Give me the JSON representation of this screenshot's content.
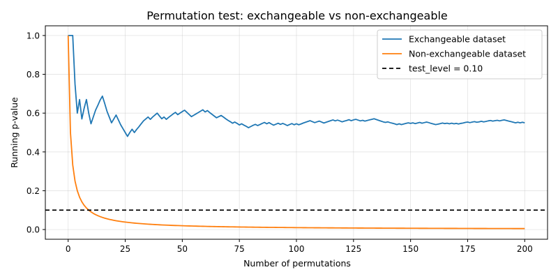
{
  "chart_data": {
    "type": "line",
    "title": "Permutation test: exchangeable vs non-exchangeable",
    "xlabel": "Number of permutations",
    "ylabel": "Running p-value",
    "xlim": [
      -10,
      210
    ],
    "ylim": [
      -0.05,
      1.05
    ],
    "xticks": [
      0,
      25,
      50,
      75,
      100,
      125,
      150,
      175,
      200
    ],
    "yticks": [
      0.0,
      0.2,
      0.4,
      0.6,
      0.8,
      1.0
    ],
    "xtick_labels": [
      "0",
      "25",
      "50",
      "75",
      "100",
      "125",
      "150",
      "175",
      "200"
    ],
    "ytick_labels": [
      "0.0",
      "0.2",
      "0.4",
      "0.6",
      "0.8",
      "1.0"
    ],
    "grid": true,
    "legend_position": "top-right",
    "series": [
      {
        "name": "Exchangeable dataset",
        "color": "#1f77b4",
        "style": "solid",
        "points": [
          [
            0,
            1.0
          ],
          [
            1,
            1.0
          ],
          [
            2,
            1.0
          ],
          [
            3,
            0.75
          ],
          [
            4,
            0.6
          ],
          [
            5,
            0.67
          ],
          [
            6,
            0.57
          ],
          [
            7,
            0.625
          ],
          [
            8,
            0.67
          ],
          [
            9,
            0.6
          ],
          [
            10,
            0.545
          ],
          [
            11,
            0.58
          ],
          [
            12,
            0.615
          ],
          [
            13,
            0.64
          ],
          [
            14,
            0.667
          ],
          [
            15,
            0.6875
          ],
          [
            16,
            0.65
          ],
          [
            17,
            0.61
          ],
          [
            18,
            0.58
          ],
          [
            19,
            0.55
          ],
          [
            20,
            0.57
          ],
          [
            21,
            0.59
          ],
          [
            22,
            0.565
          ],
          [
            23,
            0.54
          ],
          [
            24,
            0.52
          ],
          [
            25,
            0.5
          ],
          [
            26,
            0.48
          ],
          [
            27,
            0.5
          ],
          [
            28,
            0.517
          ],
          [
            29,
            0.5
          ],
          [
            30,
            0.516
          ],
          [
            31,
            0.53
          ],
          [
            32,
            0.545
          ],
          [
            33,
            0.56
          ],
          [
            34,
            0.57
          ],
          [
            35,
            0.58
          ],
          [
            36,
            0.568
          ],
          [
            37,
            0.58
          ],
          [
            38,
            0.59
          ],
          [
            39,
            0.6
          ],
          [
            40,
            0.585
          ],
          [
            41,
            0.571
          ],
          [
            42,
            0.58
          ],
          [
            43,
            0.568
          ],
          [
            44,
            0.578
          ],
          [
            45,
            0.587
          ],
          [
            46,
            0.596
          ],
          [
            47,
            0.604
          ],
          [
            48,
            0.592
          ],
          [
            49,
            0.6
          ],
          [
            50,
            0.608
          ],
          [
            51,
            0.615
          ],
          [
            52,
            0.604
          ],
          [
            53,
            0.593
          ],
          [
            54,
            0.582
          ],
          [
            55,
            0.589
          ],
          [
            56,
            0.596
          ],
          [
            57,
            0.603
          ],
          [
            58,
            0.61
          ],
          [
            59,
            0.617
          ],
          [
            60,
            0.606
          ],
          [
            61,
            0.613
          ],
          [
            62,
            0.603
          ],
          [
            63,
            0.594
          ],
          [
            64,
            0.585
          ],
          [
            65,
            0.576
          ],
          [
            66,
            0.582
          ],
          [
            67,
            0.588
          ],
          [
            68,
            0.58
          ],
          [
            69,
            0.571
          ],
          [
            70,
            0.563
          ],
          [
            71,
            0.556
          ],
          [
            72,
            0.548
          ],
          [
            73,
            0.554
          ],
          [
            74,
            0.547
          ],
          [
            75,
            0.539
          ],
          [
            76,
            0.545
          ],
          [
            77,
            0.538
          ],
          [
            78,
            0.532
          ],
          [
            79,
            0.525
          ],
          [
            80,
            0.531
          ],
          [
            81,
            0.537
          ],
          [
            82,
            0.542
          ],
          [
            83,
            0.536
          ],
          [
            84,
            0.541
          ],
          [
            85,
            0.547
          ],
          [
            86,
            0.552
          ],
          [
            87,
            0.545
          ],
          [
            88,
            0.551
          ],
          [
            89,
            0.544
          ],
          [
            90,
            0.538
          ],
          [
            91,
            0.543
          ],
          [
            92,
            0.548
          ],
          [
            93,
            0.542
          ],
          [
            94,
            0.547
          ],
          [
            95,
            0.542
          ],
          [
            96,
            0.536
          ],
          [
            97,
            0.541
          ],
          [
            98,
            0.546
          ],
          [
            99,
            0.54
          ],
          [
            100,
            0.545
          ],
          [
            101,
            0.54
          ],
          [
            102,
            0.544
          ],
          [
            103,
            0.549
          ],
          [
            104,
            0.553
          ],
          [
            105,
            0.557
          ],
          [
            106,
            0.561
          ],
          [
            107,
            0.556
          ],
          [
            108,
            0.551
          ],
          [
            109,
            0.555
          ],
          [
            110,
            0.559
          ],
          [
            111,
            0.554
          ],
          [
            112,
            0.549
          ],
          [
            113,
            0.553
          ],
          [
            114,
            0.557
          ],
          [
            115,
            0.561
          ],
          [
            116,
            0.565
          ],
          [
            117,
            0.56
          ],
          [
            118,
            0.564
          ],
          [
            119,
            0.56
          ],
          [
            120,
            0.555
          ],
          [
            121,
            0.559
          ],
          [
            122,
            0.562
          ],
          [
            123,
            0.566
          ],
          [
            124,
            0.561
          ],
          [
            125,
            0.565
          ],
          [
            126,
            0.568
          ],
          [
            127,
            0.564
          ],
          [
            128,
            0.56
          ],
          [
            129,
            0.563
          ],
          [
            130,
            0.559
          ],
          [
            131,
            0.562
          ],
          [
            132,
            0.565
          ],
          [
            133,
            0.568
          ],
          [
            134,
            0.571
          ],
          [
            135,
            0.567
          ],
          [
            136,
            0.563
          ],
          [
            137,
            0.559
          ],
          [
            138,
            0.555
          ],
          [
            139,
            0.552
          ],
          [
            140,
            0.555
          ],
          [
            141,
            0.551
          ],
          [
            142,
            0.548
          ],
          [
            143,
            0.545
          ],
          [
            144,
            0.541
          ],
          [
            145,
            0.545
          ],
          [
            146,
            0.541
          ],
          [
            147,
            0.544
          ],
          [
            148,
            0.547
          ],
          [
            149,
            0.55
          ],
          [
            150,
            0.547
          ],
          [
            151,
            0.55
          ],
          [
            152,
            0.546
          ],
          [
            153,
            0.549
          ],
          [
            154,
            0.552
          ],
          [
            155,
            0.548
          ],
          [
            156,
            0.551
          ],
          [
            157,
            0.554
          ],
          [
            158,
            0.551
          ],
          [
            159,
            0.547
          ],
          [
            160,
            0.544
          ],
          [
            161,
            0.541
          ],
          [
            162,
            0.543
          ],
          [
            163,
            0.546
          ],
          [
            164,
            0.549
          ],
          [
            165,
            0.546
          ],
          [
            166,
            0.548
          ],
          [
            167,
            0.545
          ],
          [
            168,
            0.548
          ],
          [
            169,
            0.545
          ],
          [
            170,
            0.547
          ],
          [
            171,
            0.544
          ],
          [
            172,
            0.547
          ],
          [
            173,
            0.549
          ],
          [
            174,
            0.552
          ],
          [
            175,
            0.554
          ],
          [
            176,
            0.551
          ],
          [
            177,
            0.554
          ],
          [
            178,
            0.556
          ],
          [
            179,
            0.553
          ],
          [
            180,
            0.555
          ],
          [
            181,
            0.558
          ],
          [
            182,
            0.555
          ],
          [
            183,
            0.557
          ],
          [
            184,
            0.56
          ],
          [
            185,
            0.562
          ],
          [
            186,
            0.559
          ],
          [
            187,
            0.561
          ],
          [
            188,
            0.563
          ],
          [
            189,
            0.56
          ],
          [
            190,
            0.563
          ],
          [
            191,
            0.565
          ],
          [
            192,
            0.562
          ],
          [
            193,
            0.559
          ],
          [
            194,
            0.556
          ],
          [
            195,
            0.553
          ],
          [
            196,
            0.55
          ],
          [
            197,
            0.553
          ],
          [
            198,
            0.55
          ],
          [
            199,
            0.553
          ],
          [
            200,
            0.55
          ]
        ]
      },
      {
        "name": "Non-exchangeable dataset",
        "color": "#ff7f0e",
        "style": "solid",
        "formula": "1/(n+1)",
        "x_start": 0,
        "x_end": 200,
        "final_value": 0.005
      },
      {
        "name": "test_level = 0.10",
        "color": "#000000",
        "style": "dashed",
        "y": 0.1
      }
    ]
  }
}
